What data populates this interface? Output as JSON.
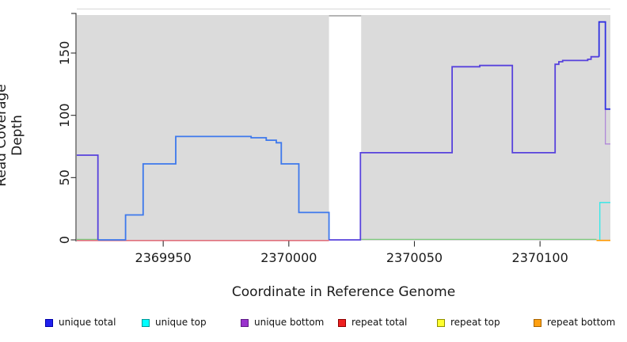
{
  "figure": {
    "background": "#FFFFFF",
    "text_color": "#1b1b1b"
  },
  "chart_data": {
    "type": "line",
    "subtype": "step-coverage",
    "title": "",
    "xlabel": "Coordinate in Reference Genome",
    "ylabel": "Read Coverage Depth",
    "xlim": [
      2369915.6,
      2370128.0
    ],
    "ylim": [
      0,
      180
    ],
    "x_ticks": [
      2369950,
      2370000,
      2370050,
      2370100
    ],
    "y_ticks": [
      0,
      50,
      100,
      150
    ],
    "grid": false,
    "panel_bg": "#DBDBDB",
    "no_data_gap": [
      2370016,
      2370028.8
    ],
    "legend_position": "bottom",
    "legend": [
      {
        "label": "unique total",
        "fill": "#2020EE",
        "border": "#0000A8"
      },
      {
        "label": "unique top",
        "fill": "#00FFFF",
        "border": "#009898"
      },
      {
        "label": "unique bottom",
        "fill": "#9932CC",
        "border": "#5E1A86"
      },
      {
        "label": "repeat total",
        "fill": "#EE2020",
        "border": "#8E0000"
      },
      {
        "label": "repeat top",
        "fill": "#FFFF2E",
        "border": "#909000"
      },
      {
        "label": "repeat bottom",
        "fill": "#FFA010",
        "border": "#A86400"
      }
    ],
    "series": [
      {
        "name": "repeat-total-baseline",
        "color": "#DC4C5C",
        "width": 1.2,
        "dy": 0.9,
        "points": [
          [
            2369915.6,
            0
          ],
          [
            2370016,
            0
          ]
        ]
      },
      {
        "name": "baseline-green-left",
        "color": "#7FCB7F",
        "width": 1.2,
        "dy": -0.6,
        "points": [
          [
            2369915.6,
            0
          ],
          [
            2369924,
            0
          ]
        ]
      },
      {
        "name": "baseline-green-right",
        "color": "#7FCB7F",
        "width": 1.2,
        "dy": -0.6,
        "points": [
          [
            2370028.8,
            0
          ],
          [
            2370122.5,
            0
          ]
        ]
      },
      {
        "name": "repeat-bottom-end",
        "color": "#FF9800",
        "width": 1.6,
        "dy": 0.7,
        "points": [
          [
            2370122.5,
            0
          ],
          [
            2370128,
            0
          ]
        ]
      },
      {
        "name": "unique-top-end",
        "color": "#2EE8E8",
        "width": 1.3,
        "dy": 0,
        "points": [
          [
            2370123.8,
            0
          ],
          [
            2370123.8,
            30
          ],
          [
            2370128,
            30
          ]
        ]
      },
      {
        "name": "unique-bottom-left",
        "color": "#5742DC",
        "width": 1.8,
        "dy": 0,
        "points": [
          [
            2369915.6,
            68
          ],
          [
            2369924,
            68
          ],
          [
            2369924,
            0
          ]
        ]
      },
      {
        "name": "unique-total-mid",
        "color": "#3D78EC",
        "width": 1.8,
        "dy": 0,
        "points": [
          [
            2369924,
            0
          ],
          [
            2369935,
            0
          ],
          [
            2369935,
            20
          ],
          [
            2369942,
            20
          ],
          [
            2369942,
            61
          ],
          [
            2369955,
            61
          ],
          [
            2369955,
            83
          ],
          [
            2369985,
            83
          ],
          [
            2369985,
            82
          ],
          [
            2369991,
            82
          ],
          [
            2369991,
            80
          ],
          [
            2369995,
            80
          ],
          [
            2369995,
            78
          ],
          [
            2369997,
            78
          ],
          [
            2369997,
            61
          ],
          [
            2370004,
            61
          ],
          [
            2370004,
            22
          ],
          [
            2370016,
            22
          ],
          [
            2370016,
            0
          ]
        ]
      },
      {
        "name": "unique-bottom-right",
        "color": "#5742DC",
        "width": 1.8,
        "dy": 0,
        "points": [
          [
            2370016,
            0
          ],
          [
            2370028.5,
            0
          ],
          [
            2370028.5,
            70
          ],
          [
            2370065,
            70
          ],
          [
            2370065,
            139
          ],
          [
            2370076,
            139
          ],
          [
            2370076,
            140
          ],
          [
            2370089,
            140
          ],
          [
            2370089,
            70
          ],
          [
            2370106,
            70
          ],
          [
            2370106,
            141
          ],
          [
            2370107.5,
            141
          ],
          [
            2370107.5,
            143
          ],
          [
            2370109,
            143
          ],
          [
            2370109,
            144
          ],
          [
            2370119,
            144
          ],
          [
            2370119,
            145
          ],
          [
            2370120.3,
            145
          ],
          [
            2370120.3,
            147
          ],
          [
            2370123.5,
            147
          ]
        ]
      },
      {
        "name": "unique-bottom-tail",
        "color": "#AC80D8",
        "width": 1.2,
        "dy": 0,
        "points": [
          [
            2370126,
            105
          ],
          [
            2370126,
            77
          ],
          [
            2370128,
            77
          ]
        ]
      },
      {
        "name": "unique-total-spike-end",
        "color": "#3232E2",
        "width": 1.8,
        "dy": 0,
        "points": [
          [
            2370123.5,
            147
          ],
          [
            2370123.5,
            175
          ],
          [
            2370126,
            175
          ],
          [
            2370126,
            105
          ],
          [
            2370128,
            105
          ]
        ]
      }
    ]
  }
}
